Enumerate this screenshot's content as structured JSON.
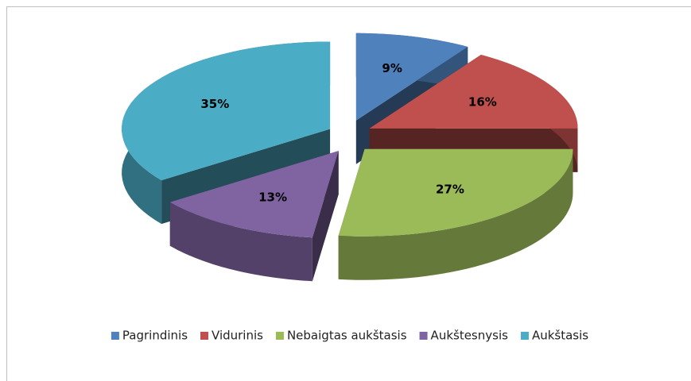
{
  "chart_data": {
    "type": "pie3d",
    "categories": [
      "Pagrindinis",
      "Vidurinis",
      "Nebaigtas aukštasis",
      "Aukštesnysis",
      "Aukštasis"
    ],
    "values": [
      9,
      16,
      27,
      13,
      35
    ],
    "value_labels": [
      "9%",
      "16%",
      "27%",
      "13%",
      "35%"
    ],
    "colors": [
      "#4f81bd",
      "#c0504d",
      "#9bbb59",
      "#8064a2",
      "#4bacc6"
    ],
    "legend": "bottom"
  }
}
